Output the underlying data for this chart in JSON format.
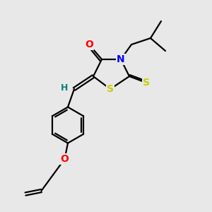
{
  "background_color": "#e8e8e8",
  "atom_colors": {
    "O": "#ff0000",
    "N": "#0000ff",
    "S": "#cccc00",
    "H": "#008080",
    "C": "#000000"
  },
  "bond_color": "#000000",
  "bond_width": 1.6,
  "font_size_atoms": 10,
  "font_size_H": 9,
  "xlim": [
    0,
    10
  ],
  "ylim": [
    0,
    10
  ]
}
